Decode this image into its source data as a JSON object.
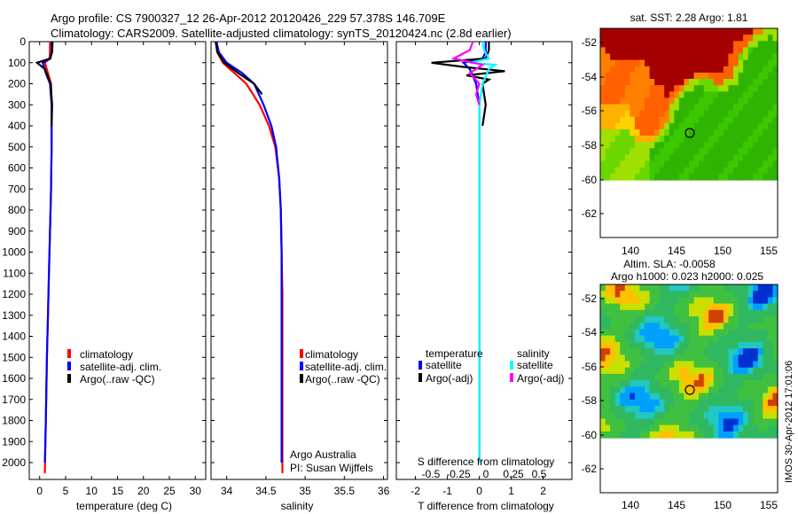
{
  "header": {
    "title_line1": "Argo profile: CS 7900327_12 26-Apr-2012 20120426_229 57.378S 146.709E",
    "title_line2": "Climatology: CARS2009. Satellite-adjusted climatology: synTS_20120424.nc (2.8d earlier)"
  },
  "colors": {
    "climatology": "#ff0000",
    "satellite": "#0000ff",
    "argo": "#000000",
    "salinity_satellite": "#00ffff",
    "salinity_argo": "#ff00ff"
  },
  "depth_ticks": [
    "0",
    "100",
    "200",
    "300",
    "400",
    "500",
    "600",
    "700",
    "800",
    "900",
    "1000",
    "1100",
    "1200",
    "1300",
    "1400",
    "1500",
    "1600",
    "1700",
    "1800",
    "1900",
    "2000"
  ],
  "panels": {
    "temperature": {
      "xlabel": "temperature (deg C)",
      "xticks": [
        "0",
        "5",
        "10",
        "15",
        "20",
        "25",
        "30"
      ],
      "legend": [
        "climatology",
        "satellite-adj. clim.",
        "Argo(..raw -QC)"
      ]
    },
    "salinity": {
      "xlabel": "salinity",
      "xticks": [
        "34",
        "34.5",
        "35",
        "35.5",
        "36"
      ],
      "legend": [
        "climatology",
        "satellite-adj. clim.",
        "Argo(..raw -QC)"
      ],
      "credit_line1": "Argo Australia",
      "credit_line2": "PI: Susan Wijffels"
    },
    "difference": {
      "xlabel": "T difference from climatology",
      "toplabel": "S difference from climatology",
      "xticks_T": [
        "-2",
        "-1",
        "0",
        "1",
        "2"
      ],
      "xticks_S": [
        "-0.5",
        "-0.25",
        "0",
        "0.25",
        "0.5"
      ],
      "legend_temp_title": "temperature",
      "legend_sal_title": "salinity",
      "legend_satellite": "satellite",
      "legend_argo": "Argo(-adj)"
    }
  },
  "maps": {
    "sst": {
      "title": "sat. SST: 2.28 Argo: 1.81",
      "yticks": [
        "-52",
        "-54",
        "-56",
        "-58",
        "-60",
        "-62"
      ],
      "xticks": [
        "140",
        "145",
        "150",
        "155"
      ]
    },
    "sla": {
      "title_line1": "Altim. SLA: -0.0058",
      "title_line2": "Argo h1000: 0.023 h2000: 0.025",
      "yticks": [
        "-52",
        "-54",
        "-56",
        "-58",
        "-60",
        "-62"
      ],
      "xticks": [
        "140",
        "145",
        "150",
        "155"
      ]
    },
    "stamp": "IMOS 30-Apr-2012 17:01:06"
  },
  "chart_data": [
    {
      "type": "line",
      "title": "",
      "xlabel": "temperature (deg C)",
      "ylabel": "",
      "xlim": [
        -2,
        32
      ],
      "ylim": [
        2080,
        0
      ],
      "y_inverted": true,
      "series": [
        {
          "name": "climatology",
          "x": [
            2.0,
            2.0,
            1.9,
            1.0,
            1.6,
            2.2,
            2.3,
            2.3,
            2.2,
            2.0,
            1.8,
            1.6,
            1.4,
            1.2,
            1.0
          ],
          "y": [
            0,
            50,
            80,
            100,
            150,
            200,
            300,
            500,
            700,
            900,
            1100,
            1300,
            1500,
            1800,
            2050
          ]
        },
        {
          "name": "satellite-adj. clim.",
          "x": [
            2.3,
            2.3,
            2.1,
            0.6,
            1.2,
            2.0,
            2.3,
            2.3,
            2.2,
            2.0,
            1.8,
            1.6,
            1.4,
            1.2,
            1.0
          ],
          "y": [
            0,
            50,
            80,
            100,
            150,
            200,
            300,
            500,
            700,
            900,
            1100,
            1300,
            1500,
            1800,
            2000
          ]
        },
        {
          "name": "Argo(..raw -QC)",
          "x": [
            2.5,
            2.4,
            2.0,
            -0.5,
            1.0,
            2.1,
            2.4,
            2.3
          ],
          "y": [
            0,
            50,
            80,
            100,
            130,
            200,
            300,
            400
          ]
        }
      ]
    },
    {
      "type": "line",
      "title": "",
      "xlabel": "salinity",
      "ylabel": "",
      "xlim": [
        33.8,
        36.05
      ],
      "ylim": [
        2080,
        0
      ],
      "y_inverted": true,
      "series": [
        {
          "name": "climatology",
          "x": [
            33.86,
            33.88,
            33.95,
            34.1,
            34.25,
            34.42,
            34.54,
            34.62,
            34.67,
            34.69,
            34.7,
            34.71,
            34.71,
            34.71
          ],
          "y": [
            0,
            50,
            100,
            150,
            200,
            300,
            400,
            500,
            650,
            800,
            1000,
            1200,
            1600,
            2050
          ]
        },
        {
          "name": "satellite-adj. clim.",
          "x": [
            33.87,
            33.9,
            34.0,
            34.2,
            34.35,
            34.47,
            34.57,
            34.63,
            34.67,
            34.69,
            34.7,
            34.7,
            34.7,
            34.7
          ],
          "y": [
            0,
            50,
            100,
            150,
            200,
            300,
            400,
            500,
            650,
            800,
            1000,
            1200,
            1600,
            2000
          ]
        },
        {
          "name": "Argo(..raw -QC)",
          "x": [
            33.86,
            33.88,
            33.97,
            34.15,
            34.35,
            34.45
          ],
          "y": [
            0,
            50,
            100,
            150,
            200,
            250
          ]
        }
      ]
    },
    {
      "type": "line",
      "title": "",
      "xlabel": "T difference from climatology",
      "ylabel": "",
      "xlim": [
        -2.6,
        2.9
      ],
      "ylim": [
        2080,
        0
      ],
      "y_inverted": true,
      "series": [
        {
          "name": "temperature satellite",
          "x": [
            0.2,
            0.2,
            0.1,
            -0.5,
            -0.3,
            -0.1,
            0.0,
            0.0,
            0.0,
            0.0,
            0.0
          ],
          "y": [
            0,
            50,
            80,
            100,
            130,
            200,
            300,
            500,
            1000,
            1500,
            2000
          ]
        },
        {
          "name": "temperature Argo(-adj)",
          "x": [
            0.3,
            0.3,
            0.2,
            -1.5,
            -0.5,
            0.8,
            -0.4,
            0.3,
            0.1,
            0.2,
            0.1
          ],
          "y": [
            0,
            40,
            80,
            100,
            120,
            140,
            160,
            180,
            200,
            300,
            400
          ]
        },
        {
          "name": "salinity satellite",
          "x": [
            0.1,
            0.15,
            0.3,
            -0.3,
            0.5,
            0.3,
            0.1,
            0.0,
            0.0,
            0.0,
            0.0
          ],
          "y": [
            0,
            40,
            80,
            100,
            110,
            130,
            200,
            300,
            500,
            1000,
            2000
          ]
        },
        {
          "name": "salinity Argo(-adj)",
          "x": [
            -0.2,
            -0.3,
            -0.8,
            0.1,
            -0.3,
            0.0,
            -0.1,
            0.0
          ],
          "y": [
            0,
            40,
            80,
            110,
            150,
            200,
            250,
            300
          ]
        }
      ]
    },
    {
      "type": "heatmap",
      "title": "sat. SST: 2.28 Argo: 1.81",
      "xlabel": "",
      "ylabel": "",
      "xlim": [
        137,
        156
      ],
      "ylim": [
        -64,
        -51
      ]
    },
    {
      "type": "heatmap",
      "title": "Altim. SLA: -0.0058",
      "xlabel": "",
      "ylabel": "",
      "xlim": [
        137,
        156
      ],
      "ylim": [
        -64,
        -51
      ]
    }
  ]
}
